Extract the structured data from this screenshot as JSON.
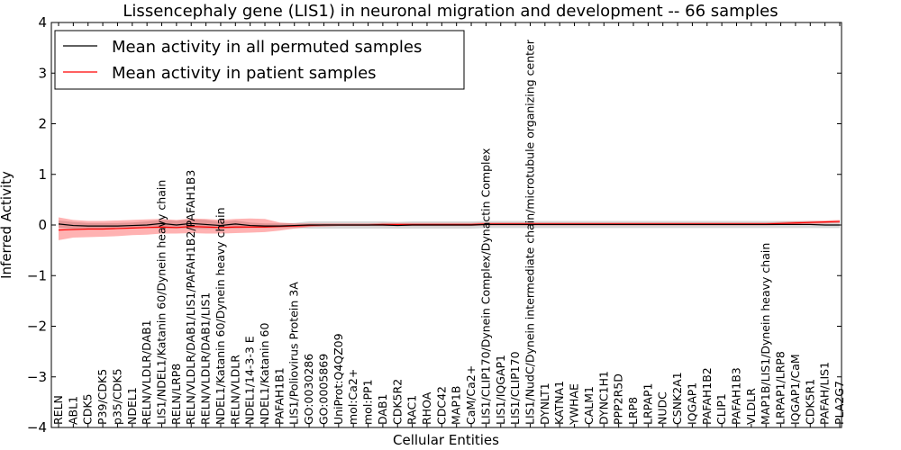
{
  "chart_data": {
    "type": "line",
    "title": "Lissencephaly gene (LIS1) in neuronal migration and development -- 66 samples",
    "xlabel": "Cellular Entities",
    "ylabel": "Inferred Activity",
    "ylim": [
      -4,
      4
    ],
    "yticks": [
      -4,
      -3,
      -2,
      -1,
      0,
      1,
      2,
      3,
      4
    ],
    "ytick_labels": [
      "−4",
      "−3",
      "−2",
      "−1",
      "0",
      "1",
      "2",
      "3",
      "4"
    ],
    "grid": false,
    "legend_position": "top-left",
    "categories": [
      "RELN",
      "ABL1",
      "CDK5",
      "P39/CDK5",
      "p35/CDK5",
      "NDEL1",
      "RELN/VLDLR/DAB1",
      "LIS1/NDEL1/Katanin 60/Dynein heavy chain",
      "RELN/LRP8",
      "RELN/VLDLR/DAB1/LIS1/PAFAH1B2/PAFAH1B3",
      "RELN/VLDLR/DAB1/LIS1",
      "NDEL1/Katanin 60/Dynein heavy chain",
      "RELN/VLDLR",
      "NDEL1/14-3-3 E",
      "NDEL1/Katanin 60",
      "PAFAH1B1",
      "LIS1/Poliovirus Protein 3A",
      "GO:0030286",
      "GO:0005869",
      "UniProt:Q4QZ09",
      "mol:Ca2+",
      "mol:PP1",
      "DAB1",
      "CDK5R2",
      "RAC1",
      "RHOA",
      "CDC42",
      "MAP1B",
      "CaM/Ca2+",
      "LIS1/CLIP170/Dynein Complex/Dynactin Complex",
      "LIS1/IQGAP1",
      "LIS1/CLIP170",
      "LIS1/NudC/Dynein intermediate chain/microtubule organizing center",
      "DYNLT1",
      "KATNA1",
      "YWHAE",
      "CALM1",
      "DYNC1H1",
      "PPP2R5D",
      "LRP8",
      "LRPAP1",
      "NUDC",
      "CSNK2A1",
      "IQGAP1",
      "PAFAH1B2",
      "CLIP1",
      "PAFAH1B3",
      "VLDLR",
      "MAP1B/LIS1/Dynein heavy chain",
      "LRPAP1/LRP8",
      "IQGAP1/CaM",
      "CDK5R1",
      "PAFAH/LIS1",
      "PLA2G7"
    ],
    "series": [
      {
        "name": "Mean activity in all permuted samples",
        "color": "#000000",
        "values": [
          0.02,
          -0.01,
          -0.02,
          -0.02,
          -0.02,
          -0.01,
          0.0,
          0.03,
          0.0,
          0.03,
          0.01,
          -0.01,
          0.02,
          -0.01,
          -0.02,
          -0.02,
          -0.01,
          0.0,
          0.0,
          0.0,
          0.0,
          0.0,
          0.0,
          -0.01,
          0.0,
          0.0,
          0.0,
          0.0,
          0.0,
          0.01,
          0.01,
          0.01,
          0.01,
          0.01,
          0.01,
          0.01,
          0.01,
          0.01,
          0.01,
          0.01,
          0.01,
          0.01,
          0.01,
          0.01,
          0.01,
          0.01,
          0.01,
          0.01,
          0.01,
          0.01,
          0.01,
          0.01,
          0.0,
          0.0
        ],
        "band_lower": [
          -0.05,
          -0.08,
          -0.08,
          -0.08,
          -0.07,
          -0.06,
          -0.06,
          -0.07,
          -0.07,
          -0.07,
          -0.08,
          -0.07,
          -0.07,
          -0.06,
          -0.06,
          -0.06,
          -0.06,
          -0.07,
          -0.07,
          -0.07,
          -0.07,
          -0.07,
          -0.07,
          -0.07,
          -0.07,
          -0.07,
          -0.07,
          -0.07,
          -0.07,
          -0.06,
          -0.06,
          -0.06,
          -0.06,
          -0.06,
          -0.06,
          -0.06,
          -0.06,
          -0.06,
          -0.06,
          -0.06,
          -0.06,
          -0.06,
          -0.06,
          -0.06,
          -0.06,
          -0.06,
          -0.06,
          -0.06,
          -0.06,
          -0.06,
          -0.06,
          -0.06,
          -0.06,
          -0.06
        ],
        "band_upper": [
          0.09,
          0.06,
          0.04,
          0.04,
          0.04,
          0.05,
          0.07,
          0.1,
          0.08,
          0.11,
          0.1,
          0.06,
          0.09,
          0.05,
          0.03,
          0.03,
          0.04,
          0.07,
          0.07,
          0.07,
          0.07,
          0.07,
          0.07,
          0.06,
          0.07,
          0.07,
          0.07,
          0.07,
          0.07,
          0.08,
          0.08,
          0.08,
          0.08,
          0.08,
          0.08,
          0.08,
          0.08,
          0.08,
          0.08,
          0.08,
          0.08,
          0.08,
          0.08,
          0.08,
          0.08,
          0.08,
          0.08,
          0.08,
          0.08,
          0.08,
          0.08,
          0.08,
          0.07,
          0.07
        ]
      },
      {
        "name": "Mean activity in patient samples",
        "color": "#ff0000",
        "values": [
          -0.1,
          -0.09,
          -0.08,
          -0.08,
          -0.07,
          -0.06,
          -0.05,
          -0.04,
          -0.05,
          -0.03,
          -0.04,
          -0.05,
          -0.04,
          -0.04,
          -0.04,
          -0.03,
          -0.02,
          -0.01,
          0.0,
          0.0,
          0.0,
          0.0,
          0.01,
          0.01,
          0.01,
          0.01,
          0.01,
          0.01,
          0.01,
          0.02,
          0.02,
          0.02,
          0.02,
          0.02,
          0.02,
          0.02,
          0.02,
          0.02,
          0.02,
          0.02,
          0.02,
          0.02,
          0.02,
          0.02,
          0.02,
          0.02,
          0.02,
          0.02,
          0.02,
          0.03,
          0.04,
          0.05,
          0.06,
          0.07
        ],
        "band_lower": [
          -0.3,
          -0.25,
          -0.24,
          -0.23,
          -0.22,
          -0.2,
          -0.19,
          -0.17,
          -0.17,
          -0.16,
          -0.17,
          -0.17,
          -0.16,
          -0.15,
          -0.14,
          -0.11,
          -0.07,
          -0.04,
          -0.03,
          -0.02,
          -0.02,
          -0.02,
          -0.02,
          -0.02,
          -0.02,
          -0.02,
          -0.02,
          -0.02,
          -0.02,
          -0.01,
          -0.01,
          -0.01,
          -0.01,
          -0.01,
          -0.01,
          -0.01,
          -0.01,
          -0.01,
          -0.01,
          -0.01,
          -0.01,
          -0.01,
          -0.01,
          -0.01,
          -0.01,
          -0.01,
          -0.01,
          -0.01,
          -0.01,
          0.0,
          0.01,
          0.02,
          0.03,
          0.04
        ],
        "band_upper": [
          0.15,
          0.1,
          0.08,
          0.08,
          0.09,
          0.1,
          0.11,
          0.12,
          0.1,
          0.13,
          0.12,
          0.1,
          0.12,
          0.13,
          0.12,
          0.05,
          0.03,
          0.03,
          0.03,
          0.03,
          0.03,
          0.03,
          0.04,
          0.04,
          0.04,
          0.04,
          0.04,
          0.04,
          0.04,
          0.05,
          0.05,
          0.05,
          0.05,
          0.05,
          0.05,
          0.05,
          0.05,
          0.05,
          0.05,
          0.05,
          0.05,
          0.05,
          0.05,
          0.05,
          0.05,
          0.05,
          0.05,
          0.05,
          0.05,
          0.06,
          0.07,
          0.08,
          0.09,
          0.1
        ]
      }
    ]
  }
}
